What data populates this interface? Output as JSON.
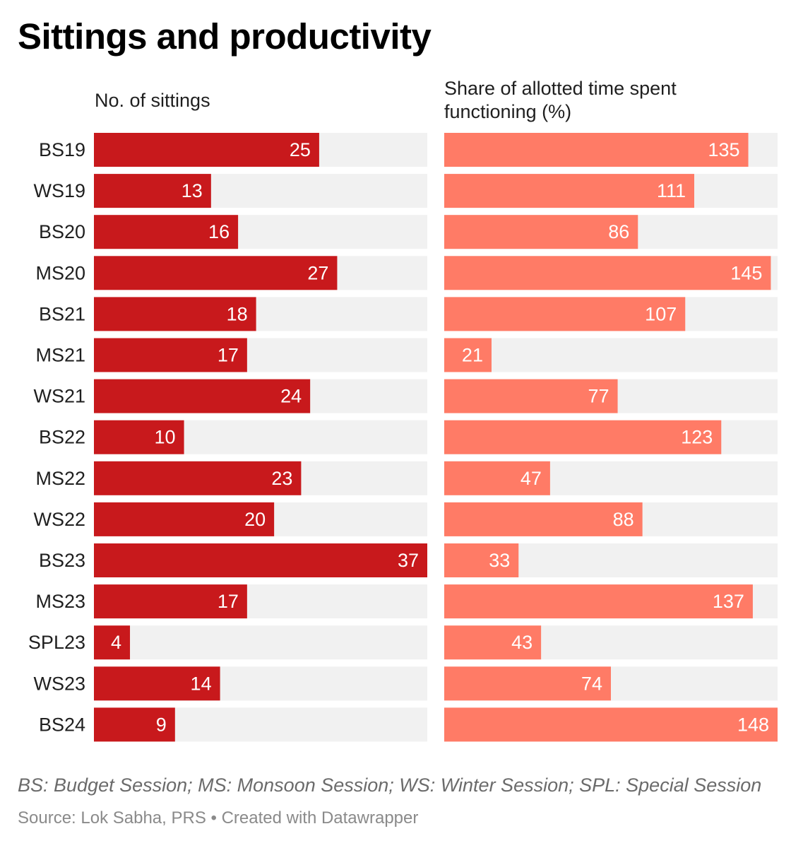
{
  "title": "Sittings and productivity",
  "left_header": "No. of sittings",
  "right_header_line1": "Share of allotted time spent",
  "right_header_line2": "functioning (%)",
  "footnote": "BS: Budget Session; MS: Monsoon Session; WS: Winter Session; SPL: Special Session",
  "source": "Source: Lok Sabha, PRS • Created with Datawrapper",
  "colors": {
    "sittings_bar": "#c8191c",
    "functioning_bar": "#ff7b66",
    "track": "#f1f1f1"
  },
  "chart_data": [
    {
      "type": "bar",
      "orientation": "horizontal",
      "title": "No. of sittings",
      "categories": [
        "BS19",
        "WS19",
        "BS20",
        "MS20",
        "BS21",
        "MS21",
        "WS21",
        "BS22",
        "MS22",
        "WS22",
        "BS23",
        "MS23",
        "SPL23",
        "WS23",
        "BS24"
      ],
      "values": [
        25,
        13,
        16,
        27,
        18,
        17,
        24,
        10,
        23,
        20,
        37,
        17,
        4,
        14,
        9
      ],
      "xlim": [
        0,
        37
      ],
      "data_labels": true
    },
    {
      "type": "bar",
      "orientation": "horizontal",
      "title": "Share of allotted time spent functioning (%)",
      "categories": [
        "BS19",
        "WS19",
        "BS20",
        "MS20",
        "BS21",
        "MS21",
        "WS21",
        "BS22",
        "MS22",
        "WS22",
        "BS23",
        "MS23",
        "SPL23",
        "WS23",
        "BS24"
      ],
      "values": [
        135,
        111,
        86,
        145,
        107,
        21,
        77,
        123,
        47,
        88,
        33,
        137,
        43,
        74,
        148
      ],
      "xlim": [
        0,
        148
      ],
      "data_labels": true
    }
  ]
}
